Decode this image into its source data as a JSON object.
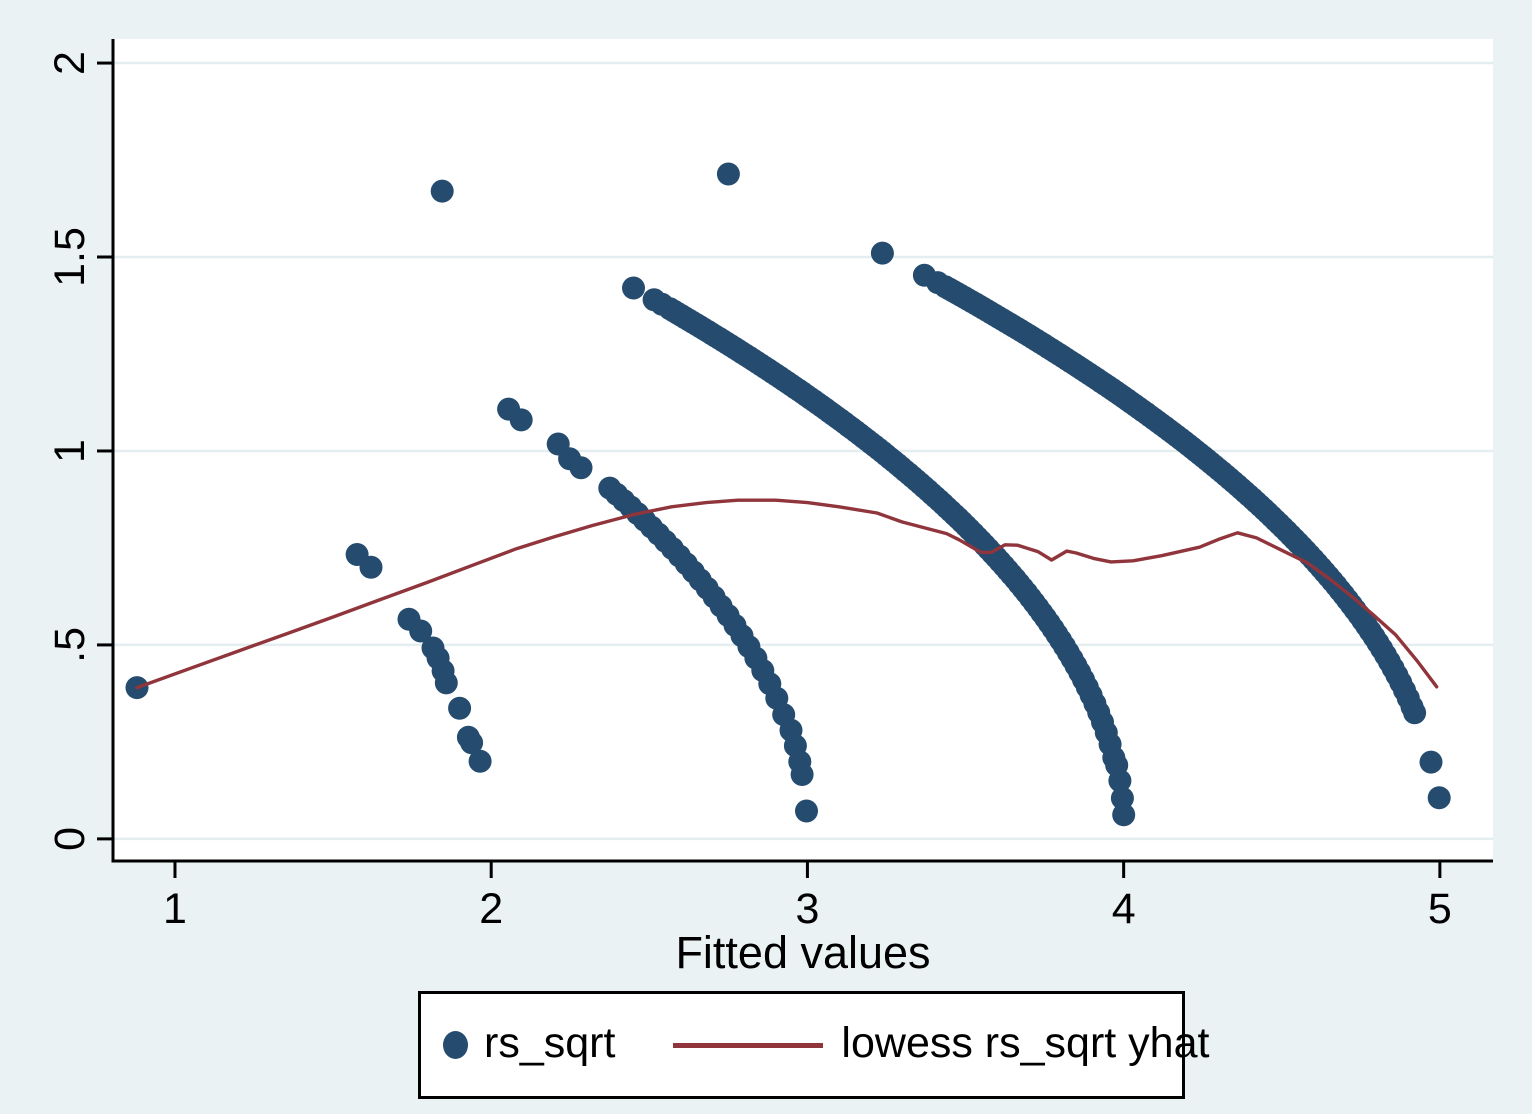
{
  "figure": {
    "background_color": "#ebf2f3",
    "plot_background_color": "#ffffff",
    "grid_color": "#e4edf0",
    "axis_color": "#000000",
    "scatter_color": "#254b6f",
    "lowess_color": "#90353b"
  },
  "chart_data": {
    "type": "scatter",
    "title": "",
    "xlabel": "Fitted values",
    "ylabel": "",
    "xlim": [
      0.804,
      5.168
    ],
    "ylim": [
      -0.057,
      2.062
    ],
    "grid": "horizontal-only",
    "legend_position": "bottom-center",
    "x_ticks": {
      "values": [
        1,
        2,
        3,
        4,
        5
      ],
      "labels": [
        "1",
        "2",
        "3",
        "4",
        "5"
      ]
    },
    "y_ticks": {
      "values": [
        0,
        0.5,
        1,
        1.5,
        2
      ],
      "labels": [
        "0",
        ".5",
        "1",
        "1.5",
        "2"
      ]
    },
    "series": [
      {
        "name": "rs_sqrt",
        "type": "scatter",
        "color": "#254b6f",
        "marker_radius": 11.5,
        "points": [
          [
            0.88,
            0.39
          ],
          [
            1.845,
            1.67
          ],
          [
            2.75,
            1.714
          ],
          [
            3.237,
            1.51
          ],
          [
            1.576,
            0.733
          ],
          [
            1.62,
            0.7
          ],
          [
            1.74,
            0.566
          ],
          [
            1.777,
            0.536
          ],
          [
            1.816,
            0.492
          ],
          [
            1.832,
            0.466
          ],
          [
            1.848,
            0.433
          ],
          [
            1.858,
            0.402
          ],
          [
            1.9,
            0.337
          ],
          [
            1.928,
            0.262
          ],
          [
            1.938,
            0.248
          ],
          [
            1.965,
            0.2
          ],
          [
            2.055,
            1.108
          ],
          [
            2.095,
            1.08
          ],
          [
            2.212,
            1.018
          ],
          [
            2.248,
            0.98
          ],
          [
            2.284,
            0.957
          ],
          [
            2.948,
            0.28
          ],
          [
            2.962,
            0.24
          ],
          [
            2.976,
            0.199
          ],
          [
            2.983,
            0.166
          ],
          [
            2.997,
            0.072
          ],
          [
            2.45,
            1.42
          ],
          [
            2.515,
            1.39
          ],
          [
            2.54,
            1.378
          ],
          [
            3.978,
            0.19
          ],
          [
            3.988,
            0.15
          ],
          [
            3.996,
            0.105
          ],
          [
            4.0,
            0.062
          ],
          [
            3.37,
            1.453
          ],
          [
            3.412,
            1.434
          ],
          [
            4.92,
            0.325
          ],
          [
            4.972,
            0.198
          ],
          [
            4.998,
            0.106
          ]
        ],
        "arc_bands": [
          {
            "band": "fitted-near-3",
            "curve": "y=sqrt(k*(c-x))",
            "k": 1.3,
            "c": 3.004,
            "x_from": 2.375,
            "x_to": 2.935,
            "x_step": 0.022
          },
          {
            "band": "fitted-near-4",
            "curve": "y=sqrt(k*(c-x))",
            "k": 1.2986,
            "c": 4.0028,
            "x_from": 2.565,
            "x_to": 3.965,
            "x_step": 0.012
          },
          {
            "band": "fitted-near-5",
            "curve": "y=sqrt(k*(c-x))",
            "k": 1.294,
            "c": 5.0016,
            "x_from": 3.436,
            "x_to": 4.908,
            "x_step": 0.012
          }
        ]
      },
      {
        "name": "lowess rs_sqrt yhat",
        "type": "line",
        "color": "#90353b",
        "width": 3.4,
        "points": [
          [
            0.88,
            0.39
          ],
          [
            1.05,
            0.44
          ],
          [
            1.2,
            0.484
          ],
          [
            1.35,
            0.528
          ],
          [
            1.5,
            0.572
          ],
          [
            1.65,
            0.617
          ],
          [
            1.8,
            0.662
          ],
          [
            1.95,
            0.708
          ],
          [
            2.08,
            0.748
          ],
          [
            2.2,
            0.779
          ],
          [
            2.32,
            0.808
          ],
          [
            2.45,
            0.836
          ],
          [
            2.57,
            0.856
          ],
          [
            2.68,
            0.867
          ],
          [
            2.78,
            0.873
          ],
          [
            2.9,
            0.873
          ],
          [
            3.0,
            0.867
          ],
          [
            3.1,
            0.856
          ],
          [
            3.22,
            0.84
          ],
          [
            3.3,
            0.817
          ],
          [
            3.38,
            0.8
          ],
          [
            3.44,
            0.787
          ],
          [
            3.48,
            0.771
          ],
          [
            3.52,
            0.752
          ],
          [
            3.548,
            0.739
          ],
          [
            3.58,
            0.738
          ],
          [
            3.625,
            0.758
          ],
          [
            3.665,
            0.757
          ],
          [
            3.73,
            0.74
          ],
          [
            3.772,
            0.719
          ],
          [
            3.82,
            0.742
          ],
          [
            3.85,
            0.737
          ],
          [
            3.905,
            0.723
          ],
          [
            3.96,
            0.714
          ],
          [
            4.03,
            0.717
          ],
          [
            4.12,
            0.73
          ],
          [
            4.24,
            0.752
          ],
          [
            4.3,
            0.772
          ],
          [
            4.36,
            0.789
          ],
          [
            4.42,
            0.776
          ],
          [
            4.5,
            0.744
          ],
          [
            4.58,
            0.712
          ],
          [
            4.65,
            0.671
          ],
          [
            4.72,
            0.626
          ],
          [
            4.79,
            0.577
          ],
          [
            4.86,
            0.526
          ],
          [
            4.93,
            0.457
          ],
          [
            4.99,
            0.392
          ]
        ]
      }
    ]
  },
  "legend": {
    "items": [
      {
        "label": "rs_sqrt",
        "swatch": "dot",
        "color": "#254b6f"
      },
      {
        "label": "lowess rs_sqrt yhat",
        "swatch": "line",
        "color": "#90353b"
      }
    ]
  }
}
